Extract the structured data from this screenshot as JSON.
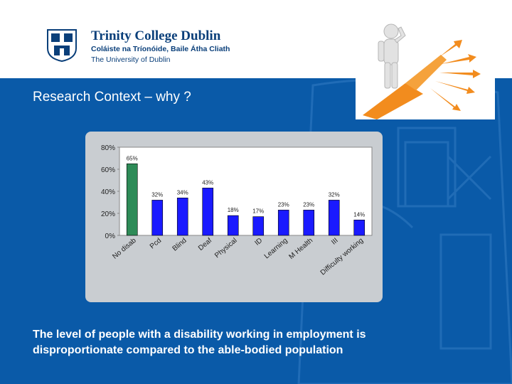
{
  "logo": {
    "title": "Trinity College Dublin",
    "irish_name": "Coláiste na Tríonóide, Baile Átha Cliath",
    "subtitle": "The University of Dublin"
  },
  "heading": "Research Context – why ?",
  "caption": {
    "line1": "The level of people with a disability working in employment is",
    "line2": "disproportionate compared to the able-bodied population"
  },
  "colors": {
    "background": "#0a5aa8",
    "bar_first": "#2e8b57",
    "bar_rest": "#1a1aff",
    "road": "#f28c1e"
  },
  "icons": [
    "trinity-crest-icon",
    "thinking-person-crossroads-icon"
  ],
  "chart_data": {
    "type": "bar",
    "categories": [
      "No disab",
      "Pcd",
      "Blind",
      "Deaf",
      "Physical",
      "ID",
      "Learning",
      "M Health",
      "III",
      "Difficulty working"
    ],
    "values": [
      65,
      32,
      34,
      43,
      18,
      17,
      23,
      23,
      32,
      14
    ],
    "value_labels": [
      "65%",
      "32%",
      "34%",
      "43%",
      "18%",
      "17%",
      "23%",
      "23%",
      "32%",
      "14%"
    ],
    "yticks": [
      "0%",
      "20%",
      "40%",
      "60%",
      "80%"
    ],
    "ylim": [
      0,
      80
    ],
    "grid": false,
    "title": "",
    "xlabel": "",
    "ylabel": ""
  }
}
